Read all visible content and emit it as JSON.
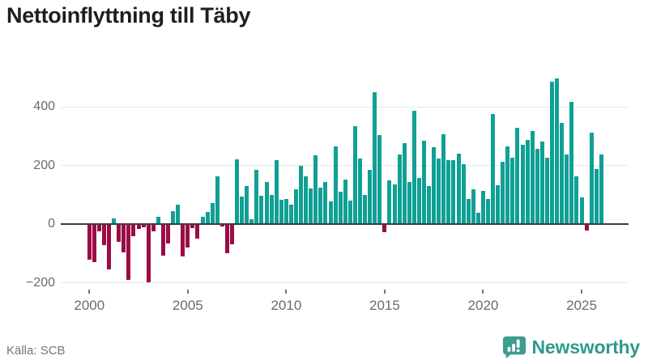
{
  "header": {
    "title": "Nettoinflyttning till Täby"
  },
  "footer": {
    "source": "Källa: SCB",
    "brand": "Newsworthy"
  },
  "chart_data": {
    "type": "bar",
    "title": "Nettoinflyttning till Täby",
    "frequency": "quarterly",
    "x_start": "2000Q1",
    "x_end": "2026Q1",
    "values": [
      -120,
      -129,
      -25,
      -71,
      -155,
      19,
      -60,
      -97,
      -190,
      -41,
      -16,
      -12,
      -199,
      -25,
      26,
      -108,
      -66,
      45,
      65,
      -110,
      -80,
      -14,
      -51,
      26,
      41,
      73,
      162,
      -8,
      -100,
      -68,
      220,
      95,
      130,
      17,
      185,
      96,
      144,
      99,
      219,
      84,
      85,
      67,
      120,
      200,
      162,
      122,
      235,
      125,
      143,
      76,
      265,
      111,
      153,
      80,
      334,
      224,
      98,
      185,
      449,
      304,
      -27,
      150,
      134,
      238,
      275,
      143,
      385,
      157,
      284,
      131,
      261,
      223,
      307,
      217,
      219,
      240,
      203,
      86,
      118,
      40,
      114,
      86,
      375,
      133,
      212,
      265,
      226,
      328,
      270,
      288,
      318,
      257,
      282,
      226,
      486,
      497,
      346,
      237,
      417,
      162,
      91,
      -22,
      312,
      188,
      237
    ],
    "x_tick_labels": [
      "2000",
      "2005",
      "2010",
      "2015",
      "2020",
      "2025"
    ],
    "x_tick_indices": [
      0,
      20,
      40,
      60,
      80,
      100
    ],
    "y_ticks": [
      400,
      200,
      0,
      -200
    ],
    "y_gridlines": [
      400,
      200,
      -200
    ],
    "ylim": [
      -230,
      560
    ],
    "grid": "horizontal",
    "legend": "none",
    "positive_color": "#10a094",
    "negative_color": "#9b0c47",
    "zero_line_color": "#3d3d3d",
    "source": "Källa: SCB",
    "brand": "Newsworthy"
  }
}
